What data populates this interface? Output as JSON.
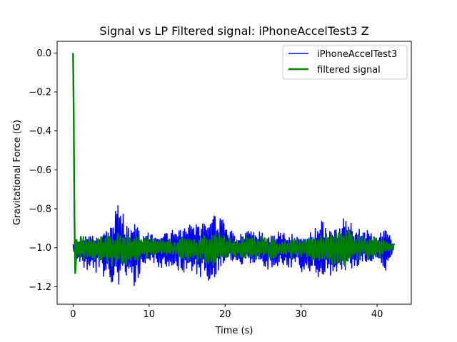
{
  "chart_data": {
    "type": "line",
    "title": "Signal vs LP Filtered signal: iPhoneAccelTest3 Z",
    "xlabel": "Time (s)",
    "ylabel": "Gravitational Force (G)",
    "xlim": [
      -2.1,
      44.5
    ],
    "ylim": [
      -1.29,
      0.06
    ],
    "xticks": [
      0,
      10,
      20,
      30,
      40
    ],
    "xtick_labels": [
      "0",
      "10",
      "20",
      "30",
      "40"
    ],
    "yticks": [
      0.0,
      -0.2,
      -0.4,
      -0.6,
      -0.8,
      -1.0,
      -1.2
    ],
    "ytick_labels": [
      "0.0",
      "−0.2",
      "−0.4",
      "−0.6",
      "−0.8",
      "−1.0",
      "−1.2"
    ],
    "grid": false,
    "legend_position": "top-right",
    "series": [
      {
        "name": "iPhoneAccelTest3",
        "color": "#0000ff",
        "x_range": [
          0,
          42.3
        ],
        "baseline": -1.0,
        "x_peaks": [
          0.0,
          1.5,
          3.5,
          5.0,
          5.4,
          6.0,
          6.5,
          7.0,
          8.2,
          9.2,
          10.0,
          11.0,
          14.0,
          17.5,
          18.3,
          18.9,
          19.5,
          20.2,
          21.4,
          24.5,
          25.8,
          27.5,
          30.5,
          31.5,
          33.0,
          33.5,
          35.0,
          35.7,
          36.2,
          37.0,
          38.2,
          40.0,
          41.2,
          42.3
        ],
        "y_peaks": [
          -0.97,
          -0.93,
          -0.95,
          -0.88,
          -0.82,
          -0.76,
          -0.78,
          -0.89,
          -0.88,
          -0.94,
          -0.92,
          -0.95,
          -0.89,
          -0.87,
          -0.81,
          -0.79,
          -0.82,
          -0.88,
          -0.93,
          -0.9,
          -0.94,
          -0.91,
          -0.95,
          -0.9,
          -0.85,
          -0.92,
          -0.9,
          -0.84,
          -0.82,
          -0.9,
          -0.88,
          -0.94,
          -0.9,
          -0.98
        ],
        "y_troughs": [
          -1.02,
          -1.12,
          -1.13,
          -1.18,
          -1.22,
          -1.19,
          -1.14,
          -1.17,
          -1.2,
          -1.1,
          -1.06,
          -1.1,
          -1.12,
          -1.16,
          -1.18,
          -1.14,
          -1.1,
          -1.05,
          -1.1,
          -1.07,
          -1.12,
          -1.09,
          -1.13,
          -1.12,
          -1.19,
          -1.15,
          -1.12,
          -1.16,
          -1.12,
          -1.1,
          -1.08,
          -1.06,
          -1.12,
          -1.0
        ]
      },
      {
        "name": "filtered signal",
        "color": "#008000",
        "x_range": [
          0,
          42.3
        ],
        "initial_x": [
          0.0,
          0.08,
          0.18,
          0.28,
          0.4
        ],
        "initial_y": [
          0.0,
          -0.3,
          -0.85,
          -1.13,
          -1.05
        ],
        "x_peaks": [
          0.5,
          2.0,
          4.0,
          5.0,
          6.0,
          7.0,
          9.0,
          12.0,
          17.0,
          18.5,
          19.5,
          21.0,
          25.0,
          27.0,
          31.0,
          33.5,
          35.5,
          36.5,
          38.0,
          40.5,
          42.3
        ],
        "y_peaks": [
          -0.93,
          -0.95,
          -0.94,
          -0.9,
          -0.91,
          -0.92,
          -0.94,
          -0.96,
          -0.93,
          -0.9,
          -0.91,
          -0.95,
          -0.94,
          -0.96,
          -0.95,
          -0.92,
          -0.9,
          -0.91,
          -0.93,
          -0.95,
          -0.98
        ],
        "y_troughs": [
          -1.07,
          -1.06,
          -1.08,
          -1.1,
          -1.11,
          -1.09,
          -1.06,
          -1.04,
          -1.08,
          -1.1,
          -1.08,
          -1.05,
          -1.06,
          -1.05,
          -1.06,
          -1.08,
          -1.1,
          -1.09,
          -1.07,
          -1.05,
          -1.0
        ]
      }
    ]
  }
}
